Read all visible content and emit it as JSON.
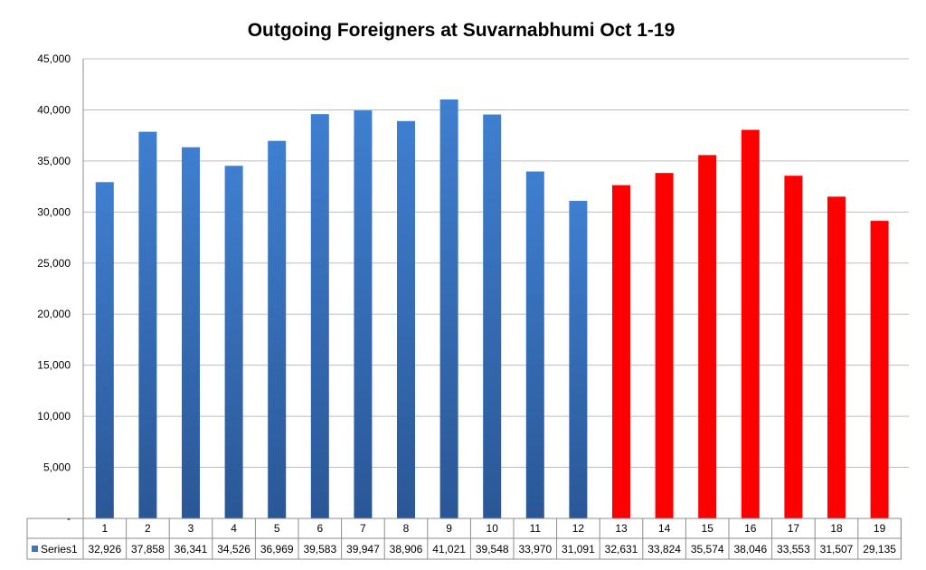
{
  "chart_data": {
    "type": "bar",
    "title": "Outgoing Foreigners at Suvarnabhumi Oct 1-19",
    "xlabel": "",
    "ylabel": "",
    "ylim": [
      0,
      45000
    ],
    "y_ticks": [
      0,
      5000,
      10000,
      15000,
      20000,
      25000,
      30000,
      35000,
      40000,
      45000
    ],
    "y_tick_labels": [
      "-",
      "5,000",
      "10,000",
      "15,000",
      "20,000",
      "25,000",
      "30,000",
      "35,000",
      "40,000",
      "45,000"
    ],
    "grid": true,
    "legend": "data table",
    "categories": [
      "1",
      "2",
      "3",
      "4",
      "5",
      "6",
      "7",
      "8",
      "9",
      "10",
      "11",
      "12",
      "13",
      "14",
      "15",
      "16",
      "17",
      "18",
      "19"
    ],
    "series": [
      {
        "name": "Series1",
        "values": [
          32926,
          37858,
          36341,
          34526,
          36969,
          39583,
          39947,
          38906,
          41021,
          39548,
          33970,
          31091,
          32631,
          33824,
          35574,
          38046,
          33553,
          31507,
          29135
        ],
        "value_labels": [
          "32,926",
          "37,858",
          "36,341",
          "34,526",
          "36,969",
          "39,583",
          "39,947",
          "38,906",
          "41,021",
          "39,548",
          "33,970",
          "31,091",
          "32,631",
          "33,824",
          "35,574",
          "38,046",
          "33,553",
          "31,507",
          "29,135"
        ],
        "color": "#3a78c4",
        "highlight_color": "#ff0000",
        "highlight_from_index": 12
      }
    ]
  }
}
